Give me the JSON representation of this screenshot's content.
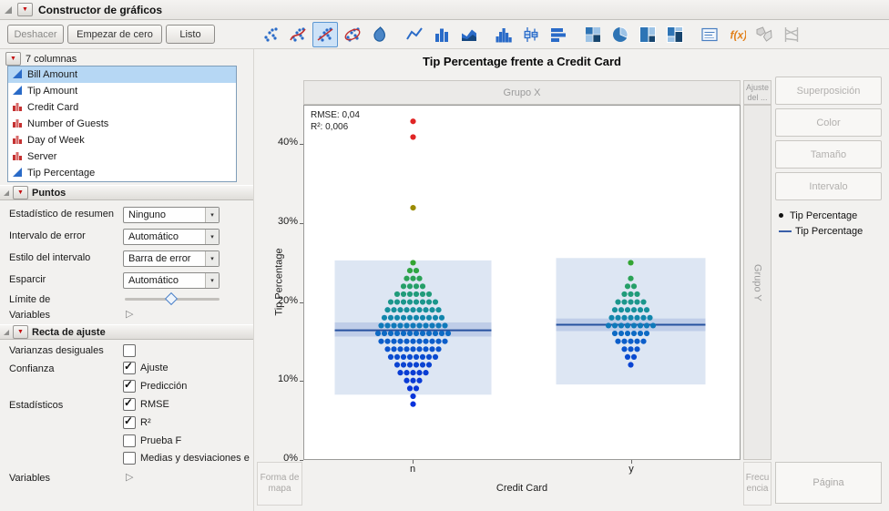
{
  "window": {
    "title": "Constructor de gráficos"
  },
  "toolbar": {
    "buttons": [
      {
        "label": "Deshacer"
      },
      {
        "label": "Empezar de cero"
      },
      {
        "label": "Listo"
      }
    ],
    "icon_groups": [
      {
        "icons": [
          "points",
          "smoother",
          "line-of-fit",
          "density-ellipse",
          "contour"
        ]
      },
      {
        "icons": [
          "line",
          "bar",
          "area"
        ]
      },
      {
        "icons": [
          "histogram",
          "box-plot",
          "bar-horizontal"
        ]
      },
      {
        "icons": [
          "heatmap",
          "pie",
          "treemap",
          "mosaic"
        ]
      },
      {
        "icons": [
          "caption-box",
          "formula",
          "map-shape",
          "parallel-plot"
        ]
      }
    ],
    "selected_icon": "line-of-fit",
    "disabled_icons": [
      "map-shape",
      "parallel-plot"
    ]
  },
  "columns_panel": {
    "header": "7 columnas",
    "items": [
      {
        "label": "Bill Amount",
        "type": "continuous",
        "selected": true
      },
      {
        "label": "Tip Amount",
        "type": "continuous",
        "selected": false
      },
      {
        "label": "Credit Card",
        "type": "nominal",
        "selected": false
      },
      {
        "label": "Number of Guests",
        "type": "nominal",
        "selected": false
      },
      {
        "label": "Day of Week",
        "type": "nominal",
        "selected": false
      },
      {
        "label": "Server",
        "type": "nominal",
        "selected": false
      },
      {
        "label": "Tip Percentage",
        "type": "continuous",
        "selected": false
      }
    ]
  },
  "points_panel": {
    "title": "Puntos",
    "dropdown_rows": [
      {
        "label": "Estadístico de resumen",
        "value": "Ninguno"
      },
      {
        "label": "Intervalo de error",
        "value": "Automático"
      },
      {
        "label": "Estilo del intervalo",
        "value": "Barra de error"
      },
      {
        "label": "Esparcir",
        "value": "Automático"
      }
    ],
    "slider_label": "Límite de",
    "variables_label": "Variables"
  },
  "fit_panel": {
    "title": "Recta de ajuste",
    "unequal_variances_label": "Varianzas desiguales",
    "unequal_variances_checked": false,
    "confidence_label": "Confianza",
    "confidence_options": [
      {
        "label": "Ajuste",
        "checked": true
      },
      {
        "label": "Predicción",
        "checked": true
      }
    ],
    "statistics_label": "Estadísticos",
    "statistics_options": [
      {
        "label": "RMSE",
        "checked": true
      },
      {
        "label": "R²",
        "checked": true
      },
      {
        "label": "Prueba F",
        "checked": false
      },
      {
        "label": "Medias y desviaciones e",
        "checked": false
      }
    ],
    "variables_label": "Variables"
  },
  "graph": {
    "title": "Tip Percentage frente a Credit Card",
    "annotations": [
      "RMSE: 0,04",
      "R²: 0,006"
    ],
    "zones": {
      "group_x": "Grupo X",
      "group_y": "Grupo Y",
      "fit": "Ajuste del ...",
      "map_shape": "Forma de mapa",
      "frequency": "Frecuencia",
      "page": "Página"
    }
  },
  "right_panel": {
    "zones": [
      "Superposición",
      "Color",
      "Tamaño",
      "Intervalo"
    ],
    "legend": [
      {
        "marker": "point",
        "label": "Tip Percentage"
      },
      {
        "marker": "line",
        "label": "Tip Percentage"
      }
    ]
  },
  "chart_data": {
    "type": "scatter",
    "subtype": "jittered category points (beeswarm) with line of fit, confidence and prediction bands",
    "title": "Tip Percentage frente a Credit Card",
    "xlabel": "Credit Card",
    "ylabel": "Tip Percentage",
    "categories": [
      "n",
      "y"
    ],
    "ylim": [
      0,
      45
    ],
    "yticks": [
      0,
      10,
      20,
      30,
      40
    ],
    "ytick_labels": [
      "0%",
      "10%",
      "20%",
      "30%",
      "40%"
    ],
    "grid": false,
    "legend_position": "right",
    "stats": {
      "rmse": "0,04",
      "r2": "0,006"
    },
    "fits": [
      {
        "category": "n",
        "line": 16.4,
        "conf_interval": [
          15.6,
          17.4
        ],
        "pred_interval": [
          8.2,
          25.3
        ]
      },
      {
        "category": "y",
        "line": 17.1,
        "conf_interval": [
          16.3,
          17.9
        ],
        "pred_interval": [
          9.5,
          25.6
        ]
      }
    ],
    "series": [
      {
        "category": "n",
        "bins": [
          {
            "value": 43,
            "count": 1,
            "color": "#e02525"
          },
          {
            "value": 41,
            "count": 1,
            "color": "#e02525"
          },
          {
            "value": 32,
            "count": 1,
            "color": "#9b8b00"
          },
          {
            "value": 25,
            "count": 1,
            "color": "#33a532"
          },
          {
            "value": 24,
            "count": 2,
            "color": "#2fa544"
          },
          {
            "value": 23,
            "count": 3,
            "color": "#2aa256"
          },
          {
            "value": 22,
            "count": 4,
            "color": "#259f68"
          },
          {
            "value": 21,
            "count": 6,
            "color": "#209b7a"
          },
          {
            "value": 20,
            "count": 8,
            "color": "#1b968c"
          },
          {
            "value": 19,
            "count": 9,
            "color": "#16909c"
          },
          {
            "value": 18,
            "count": 10,
            "color": "#1286ac"
          },
          {
            "value": 17,
            "count": 11,
            "color": "#0f79ba"
          },
          {
            "value": 16,
            "count": 12,
            "color": "#0d6ac4"
          },
          {
            "value": 15,
            "count": 11,
            "color": "#0c5eca"
          },
          {
            "value": 14,
            "count": 9,
            "color": "#0b54ce"
          },
          {
            "value": 13,
            "count": 8,
            "color": "#0a4bd0"
          },
          {
            "value": 12,
            "count": 6,
            "color": "#0a43d2"
          },
          {
            "value": 11,
            "count": 5,
            "color": "#0a3dd4"
          },
          {
            "value": 10,
            "count": 3,
            "color": "#093bd6"
          },
          {
            "value": 9,
            "count": 2,
            "color": "#0937d8"
          },
          {
            "value": 8,
            "count": 1,
            "color": "#0935da"
          },
          {
            "value": 7,
            "count": 1,
            "color": "#0933dc"
          }
        ]
      },
      {
        "category": "y",
        "bins": [
          {
            "value": 25,
            "count": 1,
            "color": "#33a532"
          },
          {
            "value": 23,
            "count": 1,
            "color": "#2aa256"
          },
          {
            "value": 22,
            "count": 2,
            "color": "#259f68"
          },
          {
            "value": 21,
            "count": 3,
            "color": "#209b7a"
          },
          {
            "value": 20,
            "count": 5,
            "color": "#1b968c"
          },
          {
            "value": 19,
            "count": 6,
            "color": "#16909c"
          },
          {
            "value": 18,
            "count": 7,
            "color": "#1286ac"
          },
          {
            "value": 17,
            "count": 8,
            "color": "#0f79ba"
          },
          {
            "value": 16,
            "count": 6,
            "color": "#0d6ac4"
          },
          {
            "value": 15,
            "count": 5,
            "color": "#0c5eca"
          },
          {
            "value": 14,
            "count": 3,
            "color": "#0b54ce"
          },
          {
            "value": 13,
            "count": 2,
            "color": "#0a4bd0"
          },
          {
            "value": 12,
            "count": 1,
            "color": "#0a43d2"
          }
        ]
      }
    ]
  }
}
